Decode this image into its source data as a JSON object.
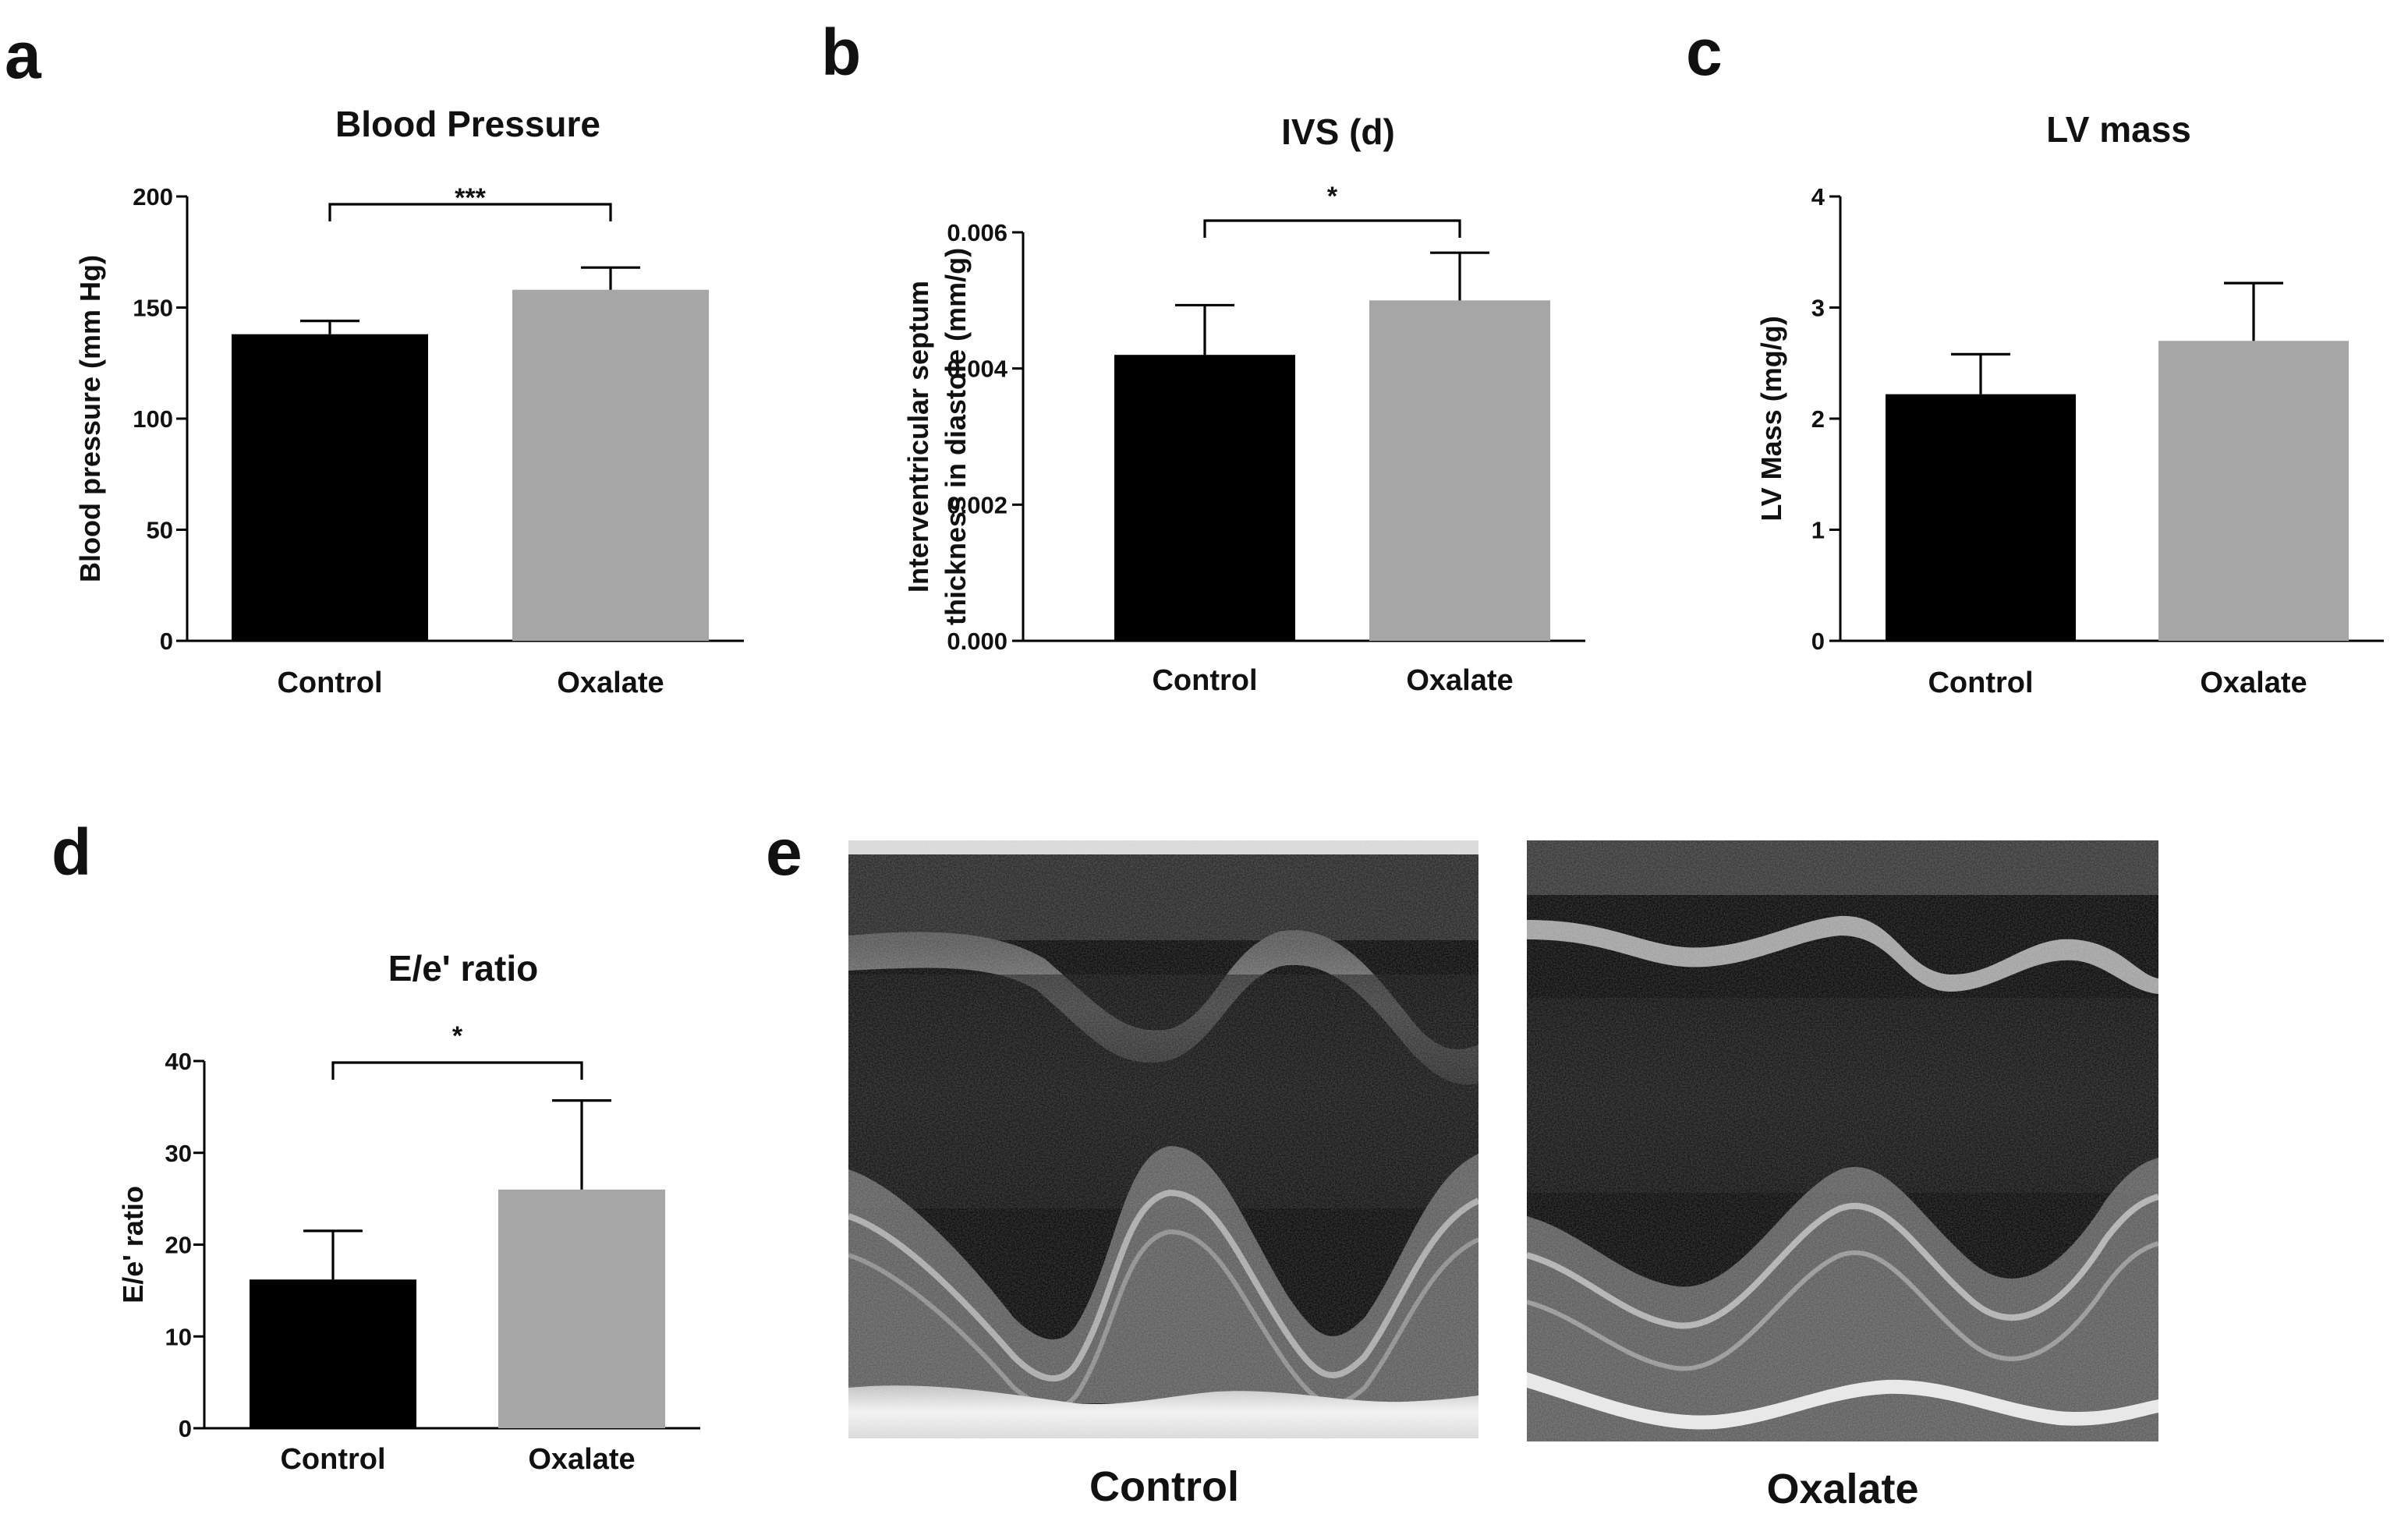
{
  "panels": [
    "a",
    "b",
    "c",
    "d",
    "e"
  ],
  "chart_data": [
    {
      "panel": "a",
      "type": "bar",
      "title": "Blood Pressure",
      "ylabel": "Blood pressure (mm Hg)",
      "categories": [
        "Control",
        "Oxalate"
      ],
      "values": [
        138,
        158
      ],
      "errors": [
        6,
        10
      ],
      "ylim": [
        0,
        200
      ],
      "yticks": [
        0,
        50,
        100,
        150,
        200
      ],
      "ytick_labels": [
        "0",
        "50",
        "100",
        "150",
        "200"
      ],
      "colors": [
        "#000000",
        "#a6a6a6"
      ],
      "significance": "***"
    },
    {
      "panel": "b",
      "type": "bar",
      "title": "IVS (d)",
      "ylabel_lines": [
        "Interventricular septum",
        "thickness in diastole (mm/g)"
      ],
      "categories": [
        "Control",
        "Oxalate"
      ],
      "values": [
        0.0042,
        0.005
      ],
      "errors": [
        0.00073,
        0.0007
      ],
      "ylim": [
        0,
        0.006
      ],
      "yticks": [
        0,
        0.002,
        0.004,
        0.006
      ],
      "ytick_labels": [
        "0.000",
        "0.002",
        "0.004",
        "0.006"
      ],
      "colors": [
        "#000000",
        "#a6a6a6"
      ],
      "significance": "*"
    },
    {
      "panel": "c",
      "type": "bar",
      "title": "LV mass",
      "ylabel": "LV Mass (mg/g)",
      "categories": [
        "Control",
        "Oxalate"
      ],
      "values": [
        2.22,
        2.7
      ],
      "errors": [
        0.36,
        0.52
      ],
      "ylim": [
        0,
        4
      ],
      "yticks": [
        0,
        1,
        2,
        3,
        4
      ],
      "ytick_labels": [
        "0",
        "1",
        "2",
        "3",
        "4"
      ],
      "colors": [
        "#000000",
        "#a6a6a6"
      ],
      "significance": ""
    },
    {
      "panel": "d",
      "type": "bar",
      "title": "E/e' ratio",
      "ylabel": "E/e' ratio",
      "categories": [
        "Control",
        "Oxalate"
      ],
      "values": [
        16.2,
        26
      ],
      "errors": [
        5.3,
        9.7
      ],
      "ylim": [
        0,
        40
      ],
      "yticks": [
        0,
        10,
        20,
        30,
        40
      ],
      "ytick_labels": [
        "0",
        "10",
        "20",
        "30",
        "40"
      ],
      "colors": [
        "#000000",
        "#a6a6a6"
      ],
      "significance": "*"
    }
  ],
  "echo": {
    "captions": [
      "Control",
      "Oxalate"
    ]
  }
}
